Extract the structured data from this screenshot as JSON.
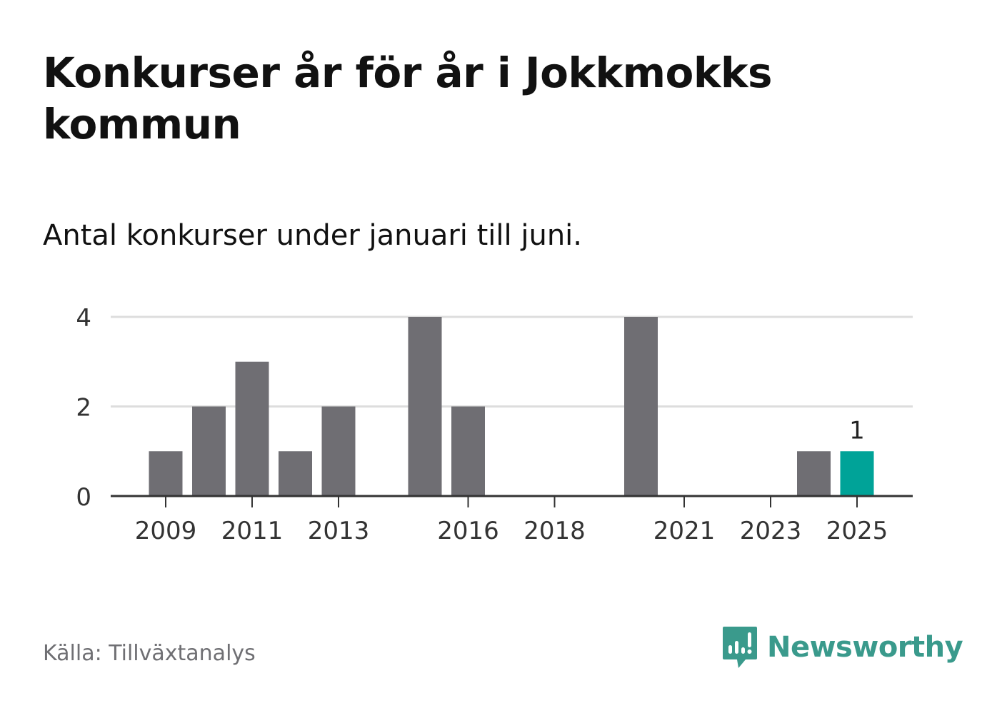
{
  "header": {
    "title": "Konkurser år för år i Jokkmokks kommun",
    "subtitle": "Antal konkurser under januari till juni."
  },
  "footer": {
    "source": "Källa: Tillväxtanalys",
    "brand": "Newsworthy",
    "brand_icon": "newsworthy-logo-icon"
  },
  "colors": {
    "bar": "#6f6e73",
    "highlight": "#00a398",
    "grid": "#dddddd",
    "axis": "#333333",
    "brand": "#3a9a8c"
  },
  "chart_data": {
    "type": "bar",
    "title": "Konkurser år för år i Jokkmokks kommun",
    "subtitle": "Antal konkurser under januari till juni.",
    "xlabel": "",
    "ylabel": "",
    "categories": [
      2009,
      2010,
      2011,
      2012,
      2013,
      2014,
      2015,
      2016,
      2017,
      2018,
      2019,
      2020,
      2021,
      2022,
      2023,
      2024,
      2025
    ],
    "values": [
      1,
      2,
      3,
      1,
      2,
      0,
      4,
      2,
      0,
      0,
      0,
      4,
      0,
      0,
      0,
      1,
      1
    ],
    "highlight_category": 2025,
    "data_labels": [
      {
        "category": 2025,
        "text": "1"
      }
    ],
    "x_tick_labels": [
      "2009",
      "2011",
      "2013",
      "2016",
      "2018",
      "2021",
      "2023",
      "2025"
    ],
    "y_ticks": [
      0,
      2,
      4
    ],
    "ylim": [
      0,
      4
    ],
    "grid": true
  }
}
